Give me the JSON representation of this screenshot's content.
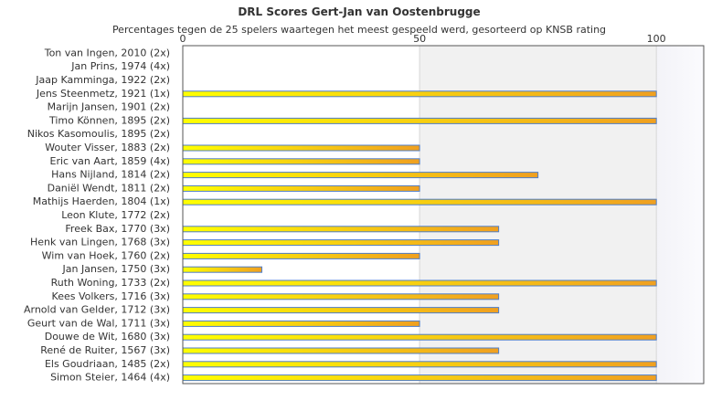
{
  "chart_data": {
    "type": "bar",
    "orientation": "horizontal",
    "title": "DRL Scores Gert-Jan van Oostenbrugge",
    "subtitle": "Percentages tegen de 25 spelers waartegen het meest gespeeld werd, gesorteerd op KNSB rating",
    "x_axis_position": "top",
    "xlim": [
      0,
      110
    ],
    "x_ticks": [
      0,
      50,
      100
    ],
    "grid": true,
    "categories": [
      "Ton van Ingen, 2010 (2x)",
      "Jan Prins, 1974 (4x)",
      "Jaap Kamminga, 1922 (2x)",
      "Jens Steenmetz, 1921 (1x)",
      "Marijn Jansen, 1901 (2x)",
      "Timo Können, 1895 (2x)",
      "Nikos Kasomoulis, 1895 (2x)",
      "Wouter Visser, 1883 (2x)",
      "Eric van Aart, 1859 (4x)",
      "Hans Nijland, 1814 (2x)",
      "Daniël Wendt, 1811 (2x)",
      "Mathijs Haerden, 1804 (1x)",
      "Leon Klute, 1772 (2x)",
      "Freek Bax, 1770 (3x)",
      "Henk van Lingen, 1768 (3x)",
      "Wim van Hoek, 1760 (2x)",
      "Jan Jansen, 1750 (3x)",
      "Ruth Woning, 1733 (2x)",
      "Kees Volkers, 1716 (3x)",
      "Arnold van Gelder, 1712 (3x)",
      "Geurt van de Wal, 1711 (3x)",
      "Douwe de Wit, 1680 (3x)",
      "René de Ruiter, 1567 (3x)",
      "Els Goudriaan, 1485 (2x)",
      "Simon Steier, 1464 (4x)"
    ],
    "values": [
      0,
      0,
      0,
      100,
      0,
      100,
      0,
      50,
      50,
      75,
      50,
      100,
      0,
      66.7,
      66.7,
      50,
      16.7,
      100,
      66.7,
      66.7,
      50,
      100,
      66.7,
      100,
      100
    ],
    "bar_gradient": [
      "#ffff00",
      "#f0a020"
    ],
    "bar_border": "#4f7ec8",
    "band_color": "#f1f1f1",
    "grid_color": "#d8d8d8"
  }
}
